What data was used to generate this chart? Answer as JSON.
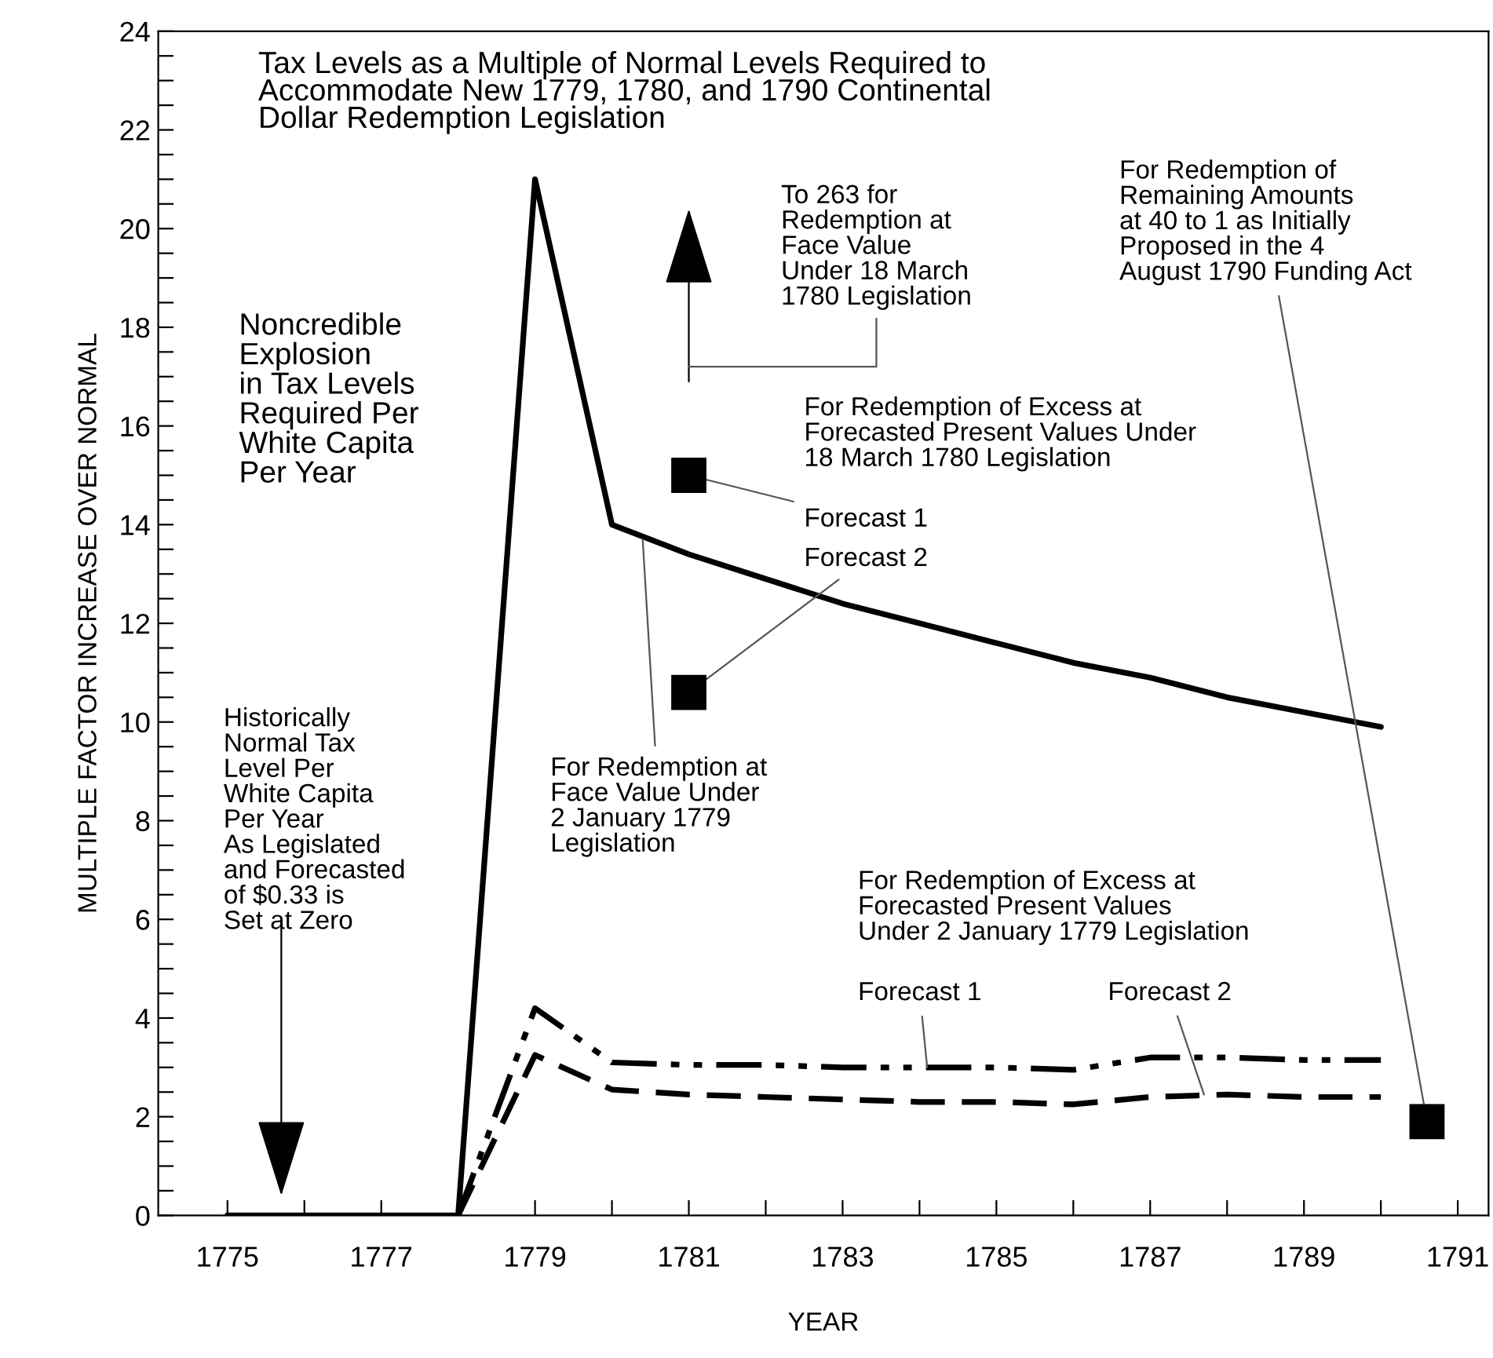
{
  "chart_data": {
    "type": "line",
    "title": "Tax Levels as a Multiple of Normal Levels Required to\nAccommodate New 1779, 1780, and 1790 Continental\nDollar Redemption Legislation",
    "xlabel": "YEAR",
    "ylabel": "MULTIPLE FACTOR INCREASE OVER NORMAL",
    "series": [
      {
        "color": "#000000",
        "line_style": "solid",
        "marker": "none",
        "x": [
          1775,
          1778,
          1779,
          1780,
          1781,
          1782,
          1783,
          1784,
          1785,
          1786,
          1787,
          1788,
          1789,
          1790
        ],
        "values": [
          0,
          0,
          21.0,
          14.0,
          13.4,
          12.9,
          12.4,
          12.0,
          11.6,
          11.2,
          10.9,
          10.5,
          10.2,
          9.9
        ]
      },
      {
        "color": "#000000",
        "line_style": "dashdot",
        "marker": "none",
        "x": [
          1778,
          1779,
          1780,
          1781,
          1782,
          1783,
          1784,
          1785,
          1786,
          1787,
          1788,
          1789,
          1790
        ],
        "values": [
          0,
          4.2,
          3.1,
          3.05,
          3.05,
          3.0,
          3.0,
          3.0,
          2.95,
          3.2,
          3.2,
          3.15,
          3.15
        ]
      },
      {
        "color": "#000000",
        "line_style": "dashed",
        "marker": "none",
        "x": [
          1778,
          1779,
          1780,
          1781,
          1782,
          1783,
          1784,
          1785,
          1786,
          1787,
          1788,
          1789,
          1790
        ],
        "values": [
          0,
          3.25,
          2.55,
          2.45,
          2.4,
          2.35,
          2.3,
          2.3,
          2.25,
          2.4,
          2.45,
          2.4,
          2.4
        ]
      },
      {
        "type": "scatter",
        "color": "#000000",
        "marker": "square",
        "x": [
          1781,
          1781,
          1790.6
        ],
        "values": [
          15.0,
          10.6,
          1.9
        ]
      }
    ],
    "xlim": [
      1774.1,
      1791.4
    ],
    "ylim": [
      0,
      24
    ],
    "xticks": [
      1775,
      {
        "value": 1776,
        "label": null
      },
      1777,
      {
        "value": 1778,
        "label": null
      },
      1779,
      {
        "value": 1780,
        "label": null
      },
      1781,
      {
        "value": 1782,
        "label": null
      },
      1783,
      {
        "value": 1784,
        "label": null
      },
      1785,
      {
        "value": 1786,
        "label": null
      },
      1787,
      {
        "value": 1788,
        "label": null
      },
      1789,
      {
        "value": 1790,
        "label": null
      },
      1791
    ],
    "yticks": [
      0,
      {
        "value": 0.5,
        "label": null
      },
      {
        "value": 1,
        "label": null
      },
      {
        "value": 1.5,
        "label": null
      },
      2,
      {
        "value": 2.5,
        "label": null
      },
      {
        "value": 3,
        "label": null
      },
      {
        "value": 3.5,
        "label": null
      },
      4,
      {
        "value": 4.5,
        "label": null
      },
      {
        "value": 5,
        "label": null
      },
      {
        "value": 5.5,
        "label": null
      },
      6,
      {
        "value": 6.5,
        "label": null
      },
      {
        "value": 7,
        "label": null
      },
      {
        "value": 7.5,
        "label": null
      },
      8,
      {
        "value": 8.5,
        "label": null
      },
      {
        "value": 9,
        "label": null
      },
      {
        "value": 9.5,
        "label": null
      },
      10,
      {
        "value": 10.5,
        "label": null
      },
      {
        "value": 11,
        "label": null
      },
      {
        "value": 11.5,
        "label": null
      },
      12,
      {
        "value": 12.5,
        "label": null
      },
      {
        "value": 13,
        "label": null
      },
      {
        "value": 13.5,
        "label": null
      },
      14,
      {
        "value": 14.5,
        "label": null
      },
      {
        "value": 15,
        "label": null
      },
      {
        "value": 15.5,
        "label": null
      },
      16,
      {
        "value": 16.5,
        "label": null
      },
      {
        "value": 17,
        "label": null
      },
      {
        "value": 17.5,
        "label": null
      },
      18,
      {
        "value": 18.5,
        "label": null
      },
      {
        "value": 19,
        "label": null
      },
      {
        "value": 19.5,
        "label": null
      },
      20,
      {
        "value": 20.5,
        "label": null
      },
      {
        "value": 21,
        "label": null
      },
      {
        "value": 21.5,
        "label": null
      },
      22,
      {
        "value": 22.5,
        "label": null
      },
      {
        "value": 23,
        "label": null
      },
      {
        "value": 23.5,
        "label": null
      },
      24
    ],
    "grid": false,
    "annotations": [
      "Noncredible\nExplosion\nin Tax Levels\nRequired Per\nWhite Capita\nPer Year",
      "To 263 for\nRedemption at\nFace Value\nUnder 18 March\n1780 Legislation",
      "For Redemption of Excess at\nForecasted Present Values Under\n18 March 1780 Legislation",
      {
        "text": "Forecast 1",
        "x": 1781,
        "y": 15.0
      },
      {
        "text": "Forecast 2",
        "x": 1781,
        "y": 10.6
      },
      {
        "text": "For Redemption at\nFace Value Under\n2 January 1779\nLegislation",
        "x": 1780.4,
        "y": 13.7
      },
      {
        "text": "For Redemption of\nRemaining Amounts\nat 40 to 1 as Initially\nProposed in the 4\nAugust 1790 Funding Act",
        "x": 1790.6,
        "y": 1.9
      },
      "For Redemption of Excess at\nForecasted Present Values\nUnder 2 January 1779 Legislation",
      {
        "text": "Forecast 1",
        "x": 1784.1,
        "y": 3.0
      },
      {
        "text": "Forecast 2",
        "x": 1787.7,
        "y": 2.45
      },
      "Historically\nNormal Tax\nLevel Per\nWhite Capita\nPer Year\nAs Legislated\nand Forecasted\nof $0.33 is\nSet at Zero"
    ]
  }
}
